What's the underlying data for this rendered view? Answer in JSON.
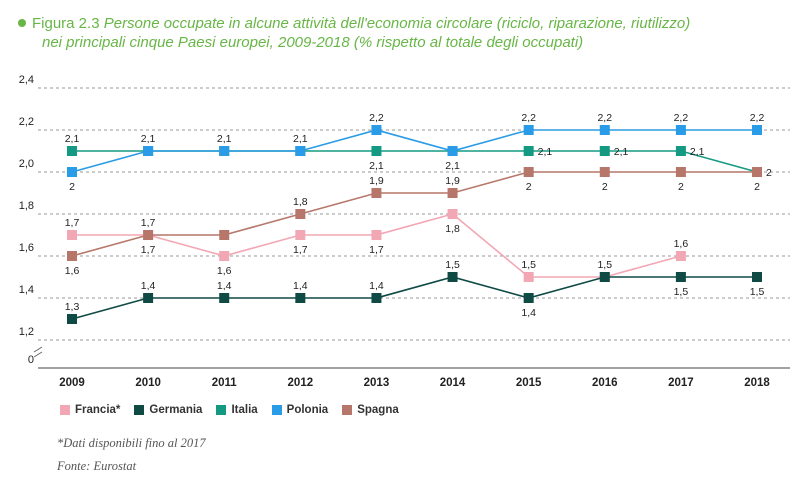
{
  "figure": {
    "number": "Figura 2.3",
    "title_line1": "Persone occupate in alcune attività dell'economia circolare (riciclo, riparazione, riutilizzo)",
    "title_line2": "nei principali cinque Paesi europei, 2009-2018 (% rispetto al totale degli occupati)",
    "accent_color": "#67b646"
  },
  "chart_data": {
    "type": "line",
    "categories": [
      "2009",
      "2010",
      "2011",
      "2012",
      "2013",
      "2014",
      "2015",
      "2016",
      "2017",
      "2018"
    ],
    "y_ticks": [
      "2,4",
      "2,2",
      "2,0",
      "1,8",
      "1,6",
      "1,4",
      "1,2",
      "0"
    ],
    "y_tick_values": [
      2.4,
      2.2,
      2.0,
      1.8,
      1.6,
      1.4,
      1.2
    ],
    "ylim": [
      1.2,
      2.4
    ],
    "axis_break": true,
    "grid": "dashed horizontal",
    "legend_position": "bottom-left",
    "series": [
      {
        "name": "Francia*",
        "color": "#f2a7b4",
        "values": [
          1.7,
          1.7,
          1.6,
          1.7,
          1.7,
          1.8,
          1.5,
          1.5,
          1.6,
          null
        ],
        "labels": [
          "1,7",
          "1,7",
          "1,6",
          "1,7",
          "1,7",
          "1,8",
          "1,5",
          "1,5",
          "1,6",
          ""
        ]
      },
      {
        "name": "Germania",
        "color": "#0f4a45",
        "values": [
          1.3,
          1.4,
          1.4,
          1.4,
          1.4,
          1.5,
          1.4,
          1.5,
          1.5,
          1.5
        ],
        "labels": [
          "1,3",
          "1,4",
          "1,4",
          "1,4",
          "1,4",
          "1,5",
          "1,4",
          "",
          "1,5",
          "1,5"
        ]
      },
      {
        "name": "Italia",
        "color": "#149a82",
        "values": [
          2.1,
          2.1,
          2.1,
          2.1,
          2.1,
          2.1,
          2.1,
          2.1,
          2.1,
          2.0
        ],
        "labels": [
          "2,1",
          "2,1",
          "2,1",
          "2,1",
          "2,1",
          "2,1",
          "2,1",
          "2,1",
          "2,1",
          "2"
        ]
      },
      {
        "name": "Polonia",
        "color": "#2a9be6",
        "values": [
          2.0,
          2.1,
          2.1,
          2.1,
          2.2,
          2.1,
          2.2,
          2.2,
          2.2,
          2.2
        ],
        "labels": [
          "2",
          "",
          "",
          "",
          "2,2",
          "",
          "2,2",
          "2,2",
          "2,2",
          "2,2"
        ]
      },
      {
        "name": "Spagna",
        "color": "#b6776a",
        "values": [
          1.6,
          1.7,
          1.7,
          1.8,
          1.9,
          1.9,
          2.0,
          2.0,
          2.0,
          2.0
        ],
        "labels": [
          "1,6",
          "1,7",
          "",
          "1,8",
          "1,9",
          "1,9",
          "2",
          "2",
          "2",
          "2"
        ]
      }
    ]
  },
  "notes": {
    "footnote": "*Dati disponibili fino al 2017",
    "source": "Fonte: Eurostat"
  }
}
